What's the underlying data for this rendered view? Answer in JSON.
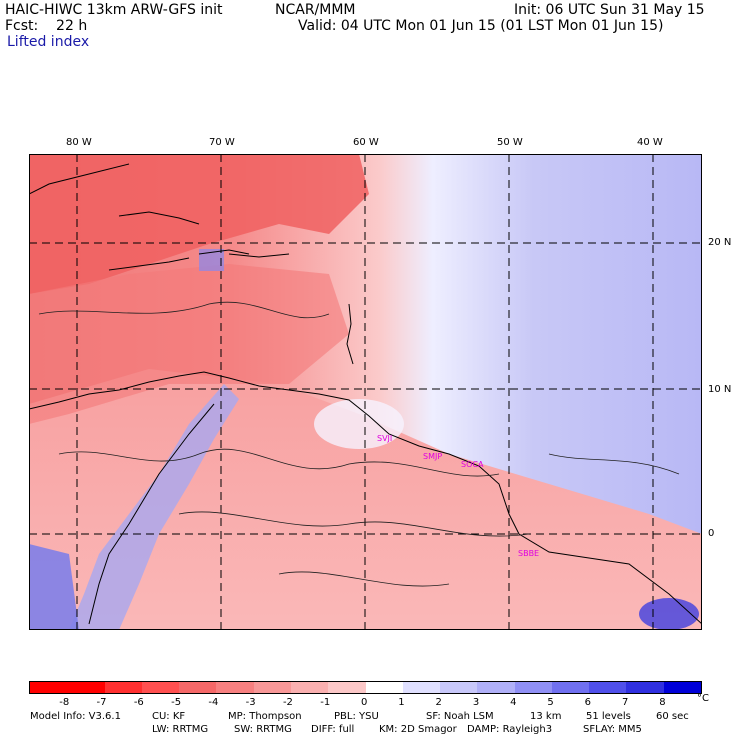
{
  "header": {
    "model": "HAIC-HIWC 13km ARW-GFS init",
    "org": "NCAR/MMM",
    "init": "Init: 06 UTC Sun 31 May 15",
    "fcst": "Fcst:    22 h",
    "valid": "Valid: 04 UTC Mon 01 Jun 15 (01 LST Mon 01 Jun 15)",
    "field": "Lifted index"
  },
  "axes": {
    "lon_labels": [
      "80 W",
      "70 W",
      "60 W",
      "50 W",
      "40 W"
    ],
    "lat_labels": [
      "20 N",
      "10 N",
      "0"
    ]
  },
  "stations": [
    "SVJI",
    "SMJP",
    "SOCA",
    "SBBE"
  ],
  "colorbar": {
    "labels": [
      "-8",
      "-7",
      "-6",
      "-5",
      "-4",
      "-3",
      "-2",
      "-1",
      "0",
      "1",
      "2",
      "3",
      "4",
      "5",
      "6",
      "7",
      "8"
    ],
    "unit": "°C",
    "colors": [
      "#ff0000",
      "#ff3030",
      "#ff5050",
      "#f56868",
      "#f78080",
      "#f89898",
      "#fab0b0",
      "#fcc8c8",
      "#ffffff",
      "#e0e0ff",
      "#c8c8fa",
      "#b0b0f8",
      "#9090f5",
      "#7070f0",
      "#5050ea",
      "#3030e0",
      "#0000d8"
    ]
  },
  "footer": {
    "line1": [
      "Model Info: V3.6.1",
      "CU: KF",
      "MP: Thompson",
      "PBL: YSU",
      "SF: Noah LSM",
      "13 km",
      "51 levels",
      "60 sec"
    ],
    "line2": [
      "LW: RRTMG",
      "SW: RRTMG",
      "DIFF: full",
      "KM: 2D Smagor",
      "DAMP: Rayleigh3",
      "SFLAY: MM5"
    ]
  }
}
